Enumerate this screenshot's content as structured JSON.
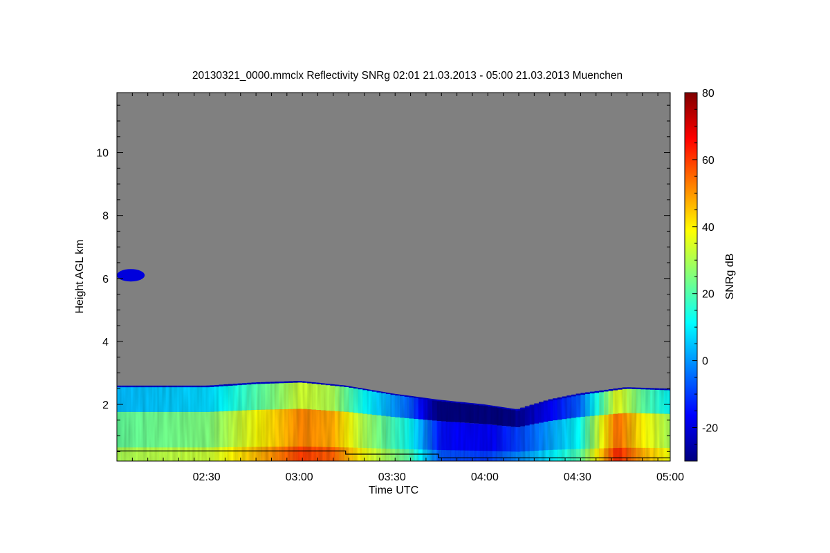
{
  "chart_data": {
    "type": "heatmap",
    "title": "20130321_0000.mmclx Reflectivity SNRg   02:01 21.03.2013 - 05:00 21.03.2013 Muenchen",
    "xlabel": "Time UTC",
    "ylabel": "Height AGL km",
    "colorbar_label": "SNRg dB",
    "xlim": [
      "02:01",
      "05:00"
    ],
    "ylim": [
      0.2,
      11.9
    ],
    "x_ticks": [
      "02:30",
      "03:00",
      "03:30",
      "04:00",
      "04:30",
      "05:00"
    ],
    "y_ticks": [
      2,
      4,
      6,
      8,
      10
    ],
    "colorbar_range": [
      -30,
      80
    ],
    "colorbar_ticks": [
      -20,
      0,
      20,
      40,
      60,
      80
    ],
    "background_color": "#808080",
    "colormap": [
      "#00007f",
      "#0000ff",
      "#007fff",
      "#00ffff",
      "#7fff7f",
      "#ffff00",
      "#ff7f00",
      "#ff0000",
      "#7f0000"
    ],
    "echo_top_km": [
      {
        "time": "02:01",
        "height": 2.6
      },
      {
        "time": "02:30",
        "height": 2.6
      },
      {
        "time": "02:45",
        "height": 2.7
      },
      {
        "time": "03:00",
        "height": 2.75
      },
      {
        "time": "03:15",
        "height": 2.6
      },
      {
        "time": "03:30",
        "height": 2.35
      },
      {
        "time": "03:45",
        "height": 2.15
      },
      {
        "time": "04:00",
        "height": 2.0
      },
      {
        "time": "04:10",
        "height": 1.85
      },
      {
        "time": "04:20",
        "height": 2.15
      },
      {
        "time": "04:30",
        "height": 2.35
      },
      {
        "time": "04:45",
        "height": 2.55
      },
      {
        "time": "05:00",
        "height": 2.5
      }
    ],
    "snr_profile_db": [
      {
        "time": "02:01",
        "snr": 22
      },
      {
        "time": "02:30",
        "snr": 25
      },
      {
        "time": "02:50",
        "snr": 42
      },
      {
        "time": "03:00",
        "snr": 52
      },
      {
        "time": "03:10",
        "snr": 48
      },
      {
        "time": "03:20",
        "snr": 30
      },
      {
        "time": "03:35",
        "snr": 12
      },
      {
        "time": "03:45",
        "snr": -15
      },
      {
        "time": "04:00",
        "snr": -18
      },
      {
        "time": "04:15",
        "snr": -5
      },
      {
        "time": "04:30",
        "snr": 12
      },
      {
        "time": "04:42",
        "snr": 55
      },
      {
        "time": "04:50",
        "snr": 40
      },
      {
        "time": "05:00",
        "snr": 28
      }
    ],
    "cloud_patch": {
      "time_start": "02:01",
      "time_end": "02:10",
      "height": 6.1,
      "snr": -20
    },
    "melting_layer_km": [
      {
        "time": "02:01",
        "height": 0.52
      },
      {
        "time": "03:15",
        "height": 0.52
      },
      {
        "time": "03:15",
        "height": 0.42
      },
      {
        "time": "03:45",
        "height": 0.42
      },
      {
        "time": "03:45",
        "height": 0.3
      },
      {
        "time": "05:00",
        "height": 0.3
      }
    ]
  }
}
